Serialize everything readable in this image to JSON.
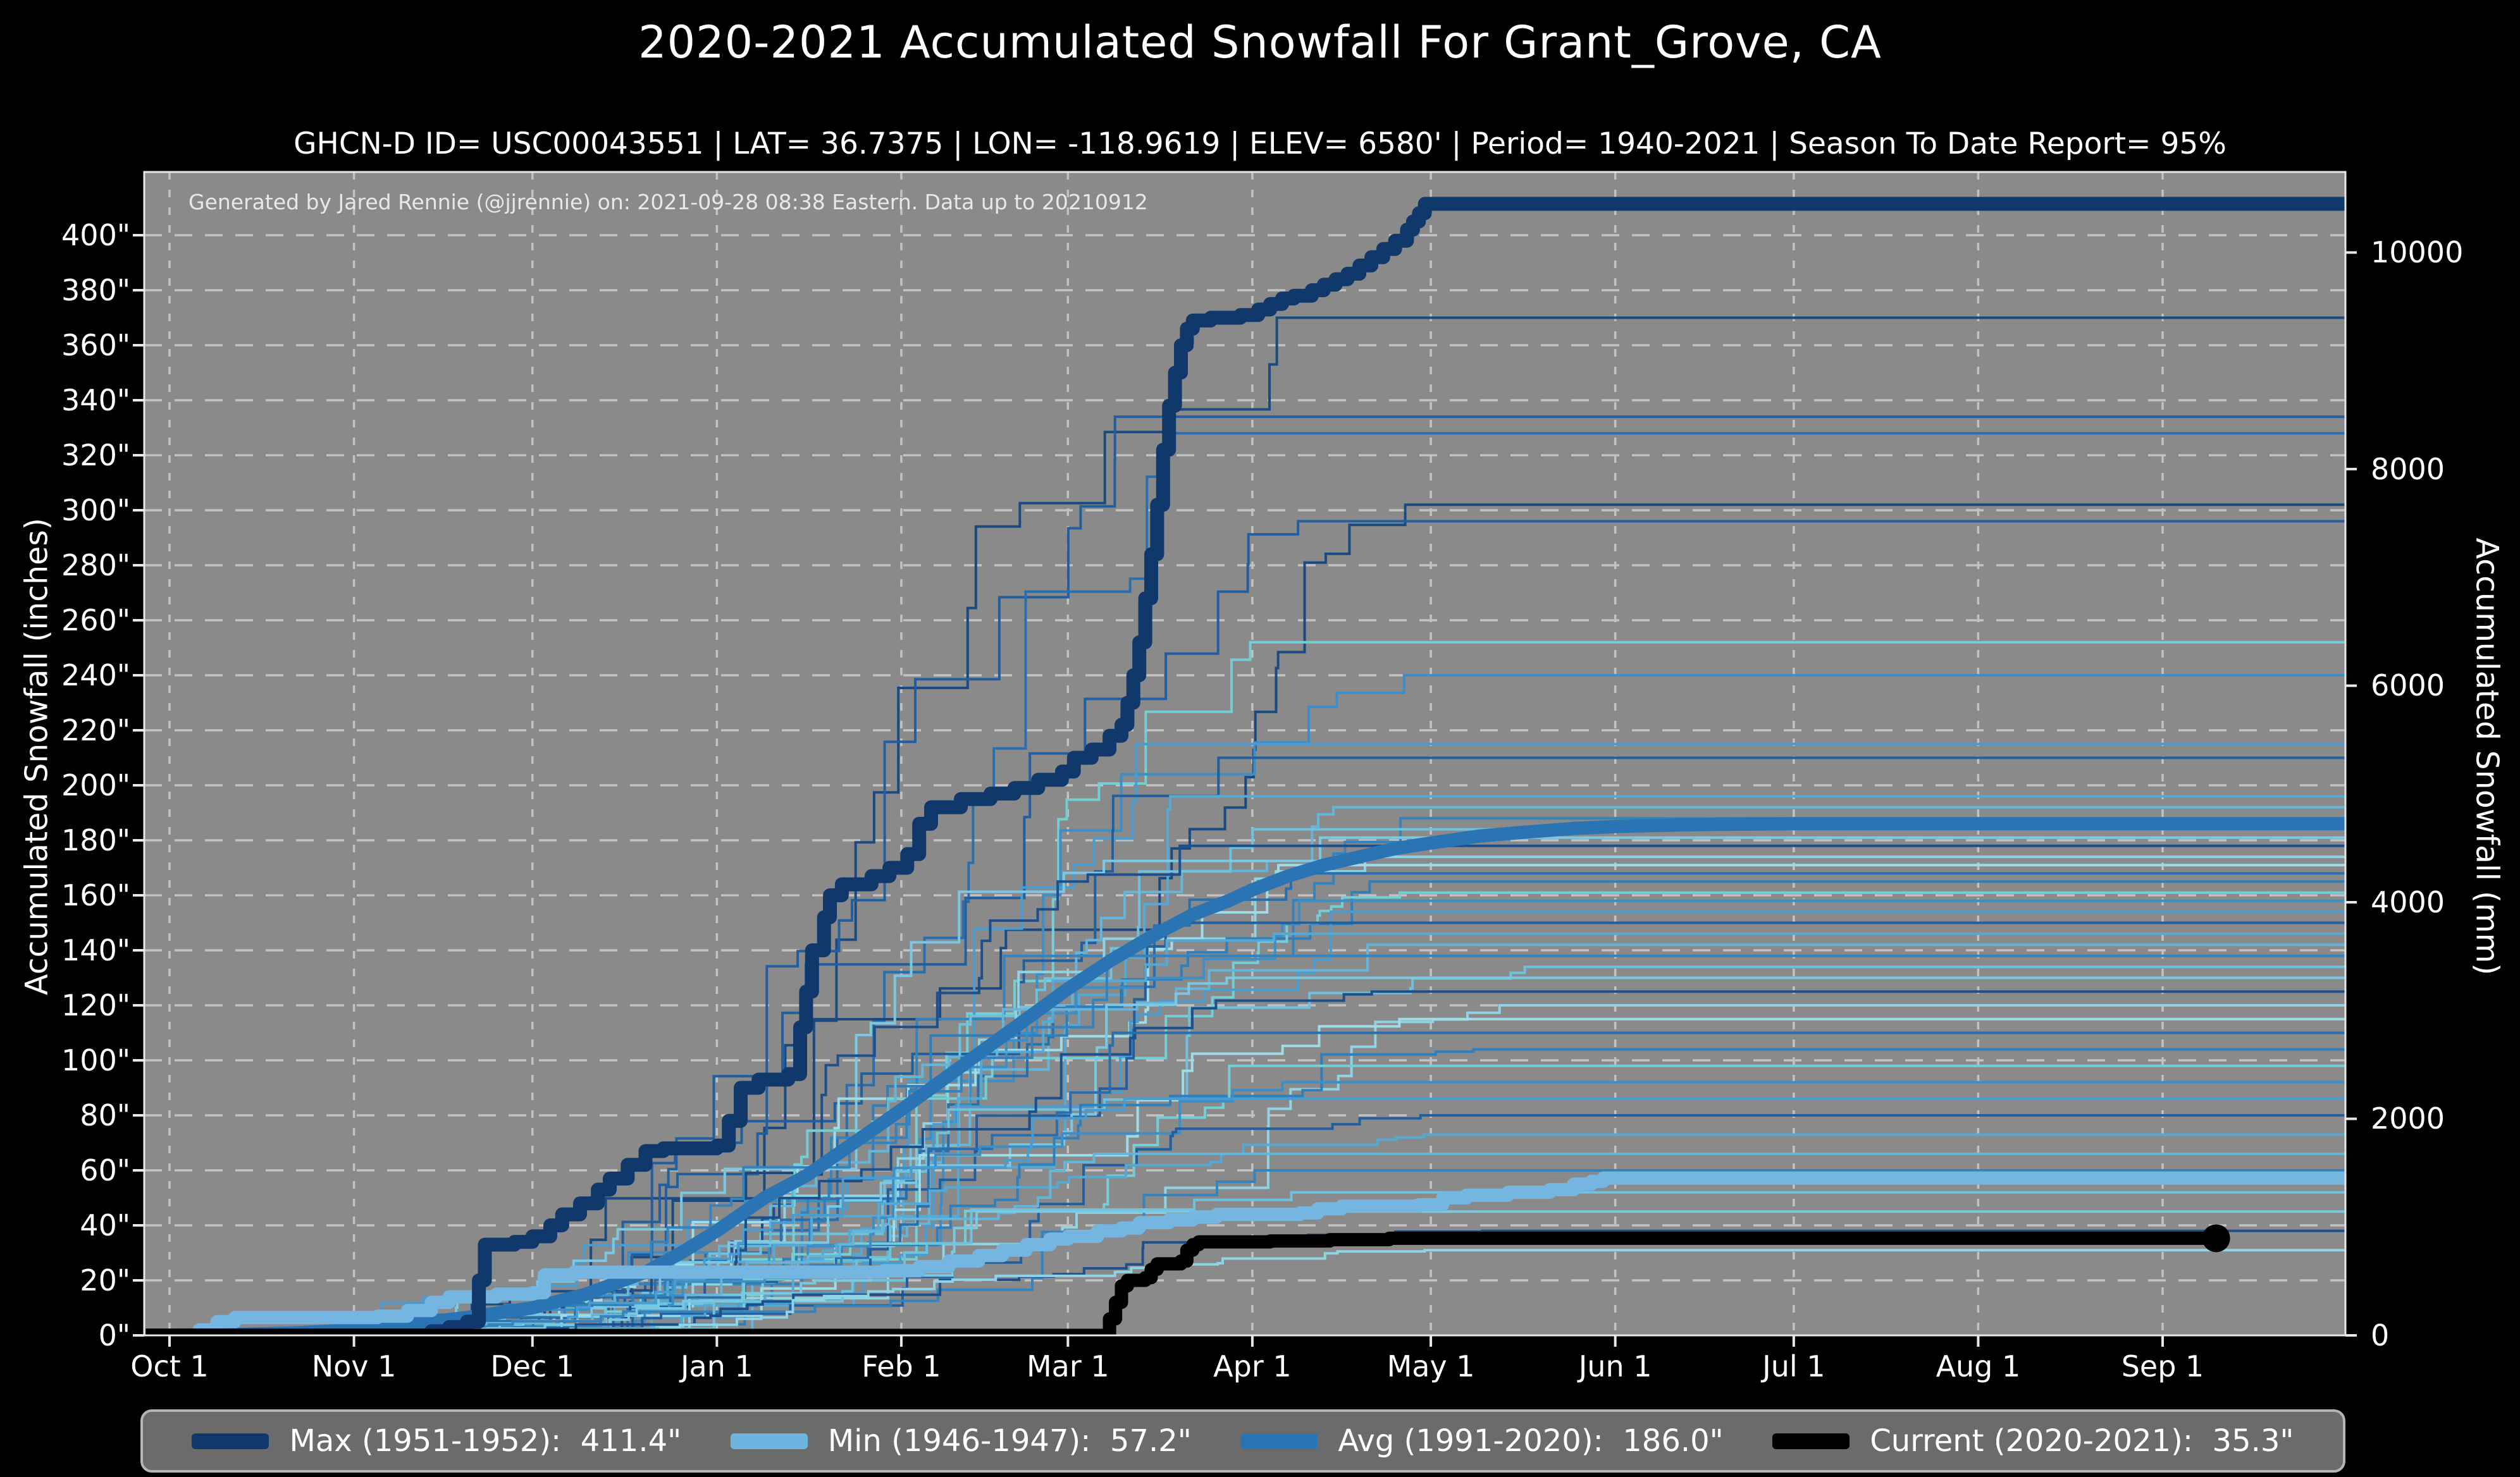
{
  "title": "2020-2021 Accumulated Snowfall For Grant_Grove, CA",
  "subtitle": "GHCN-D ID= USC00043551 | LAT= 36.7375 | LON= -118.9619 | ELEV= 6580' | Period= 1940-2021 | Season To Date Report= 95%",
  "attribution": "Generated by Jared Rennie (@jjrennie) on: 2021-09-28 08:38 Eastern. Data up to 20210912",
  "axes": {
    "left_label": "Accumulated Snowfall (inches)",
    "right_label": "Accumulated Snowfall (mm)",
    "x_ticks": [
      {
        "day": 0,
        "label": "Oct 1"
      },
      {
        "day": 31,
        "label": "Nov 1"
      },
      {
        "day": 61,
        "label": "Dec 1"
      },
      {
        "day": 92,
        "label": "Jan 1"
      },
      {
        "day": 123,
        "label": "Feb 1"
      },
      {
        "day": 151,
        "label": "Mar 1"
      },
      {
        "day": 182,
        "label": "Apr 1"
      },
      {
        "day": 212,
        "label": "May 1"
      },
      {
        "day": 243,
        "label": "Jun 1"
      },
      {
        "day": 273,
        "label": "Jul 1"
      },
      {
        "day": 304,
        "label": "Aug 1"
      },
      {
        "day": 335,
        "label": "Sep 1"
      }
    ],
    "y_ticks_inches": [
      {
        "v": 0,
        "label": "0\""
      },
      {
        "v": 20,
        "label": "20\""
      },
      {
        "v": 40,
        "label": "40\""
      },
      {
        "v": 60,
        "label": "60\""
      },
      {
        "v": 80,
        "label": "80\""
      },
      {
        "v": 100,
        "label": "100\""
      },
      {
        "v": 120,
        "label": "120\""
      },
      {
        "v": 140,
        "label": "140\""
      },
      {
        "v": 160,
        "label": "160\""
      },
      {
        "v": 180,
        "label": "180\""
      },
      {
        "v": 200,
        "label": "200\""
      },
      {
        "v": 220,
        "label": "220\""
      },
      {
        "v": 240,
        "label": "240\""
      },
      {
        "v": 260,
        "label": "260\""
      },
      {
        "v": 280,
        "label": "280\""
      },
      {
        "v": 300,
        "label": "300\""
      },
      {
        "v": 320,
        "label": "320\""
      },
      {
        "v": 340,
        "label": "340\""
      },
      {
        "v": 360,
        "label": "360\""
      },
      {
        "v": 380,
        "label": "380\""
      },
      {
        "v": 400,
        "label": "400\""
      }
    ],
    "y_ticks_mm": [
      {
        "mm": 0,
        "label": "0"
      },
      {
        "mm": 2000,
        "label": "2000"
      },
      {
        "mm": 4000,
        "label": "4000"
      },
      {
        "mm": 6000,
        "label": "6000"
      },
      {
        "mm": 8000,
        "label": "8000"
      },
      {
        "mm": 10000,
        "label": "10000"
      }
    ]
  },
  "legend": [
    {
      "label": "Max (1951-1952):  411.4\"",
      "color": "#10386b"
    },
    {
      "label": "Min (1946-1947):  57.2\"",
      "color": "#6cb3de"
    },
    {
      "label": "Avg (1991-2020):  186.0\"",
      "color": "#2a74b4"
    },
    {
      "label": "Current (2020-2021):  35.3\"",
      "color": "#000000"
    }
  ],
  "colors": {
    "figure_bg": "#000000",
    "plot_bg": "#8a8a8a",
    "grid": "#c6c6c6",
    "spine": "#e8e8e8",
    "max_line": "#10386b",
    "min_line": "#74b6e0",
    "avg_line": "#2a74b4",
    "current_line": "#000000"
  },
  "chart_data": {
    "type": "line",
    "title": "2020-2021 Accumulated Snowfall For Grant_Grove, CA",
    "xlabel": "",
    "ylabel_left": "Accumulated Snowfall (inches)",
    "ylabel_right": "Accumulated Snowfall (mm)",
    "x_unit": "days since Oct 1",
    "xlim": [
      -4,
      366
    ],
    "ylim_inches": [
      0,
      423
    ],
    "grid": true,
    "legend_position": "bottom",
    "series": [
      {
        "name": "Max (1951-1952)",
        "final_inches": 411.4,
        "style": "step",
        "color": "#10386b",
        "width": 22,
        "points": [
          [
            -4,
            0
          ],
          [
            44,
            1.5
          ],
          [
            47,
            3
          ],
          [
            50,
            5
          ],
          [
            52,
            20
          ],
          [
            53,
            33
          ],
          [
            58,
            34
          ],
          [
            61,
            36
          ],
          [
            64,
            40
          ],
          [
            66,
            44
          ],
          [
            69,
            48
          ],
          [
            72,
            53
          ],
          [
            74,
            57
          ],
          [
            77,
            62
          ],
          [
            80,
            67
          ],
          [
            83,
            68
          ],
          [
            92,
            69
          ],
          [
            94,
            78
          ],
          [
            96,
            90
          ],
          [
            99,
            93
          ],
          [
            104,
            95
          ],
          [
            106,
            112
          ],
          [
            107,
            125
          ],
          [
            108,
            140
          ],
          [
            110,
            152
          ],
          [
            111,
            160
          ],
          [
            113,
            164
          ],
          [
            118,
            167
          ],
          [
            121,
            170
          ],
          [
            124,
            175
          ],
          [
            126,
            186
          ],
          [
            128,
            192
          ],
          [
            133,
            195
          ],
          [
            138,
            197
          ],
          [
            142,
            199
          ],
          [
            146,
            202
          ],
          [
            150,
            205
          ],
          [
            152,
            210
          ],
          [
            155,
            213
          ],
          [
            158,
            218
          ],
          [
            160,
            222
          ],
          [
            161,
            230
          ],
          [
            162,
            240
          ],
          [
            163,
            252
          ],
          [
            164,
            268
          ],
          [
            165,
            284
          ],
          [
            166,
            302
          ],
          [
            167,
            322
          ],
          [
            168,
            338
          ],
          [
            169,
            350
          ],
          [
            170,
            360
          ],
          [
            171,
            366
          ],
          [
            172,
            369
          ],
          [
            175,
            370
          ],
          [
            180,
            371
          ],
          [
            183,
            373
          ],
          [
            185,
            375
          ],
          [
            187,
            377
          ],
          [
            189,
            378
          ],
          [
            192,
            380
          ],
          [
            194,
            382
          ],
          [
            196,
            384
          ],
          [
            198,
            386
          ],
          [
            200,
            389
          ],
          [
            202,
            392
          ],
          [
            204,
            395
          ],
          [
            206,
            398
          ],
          [
            208,
            402
          ],
          [
            209,
            405
          ],
          [
            210,
            408
          ],
          [
            211,
            411.4
          ],
          [
            366,
            411.4
          ]
        ]
      },
      {
        "name": "Avg (1991-2020)",
        "final_inches": 186.0,
        "style": "linear",
        "color": "#2a74b4",
        "width": 21,
        "points": [
          [
            -4,
            0
          ],
          [
            10,
            0.3
          ],
          [
            20,
            0.8
          ],
          [
            31,
            2
          ],
          [
            40,
            4
          ],
          [
            50,
            6.5
          ],
          [
            61,
            10
          ],
          [
            70,
            15
          ],
          [
            80,
            23
          ],
          [
            86,
            30
          ],
          [
            92,
            38
          ],
          [
            100,
            50
          ],
          [
            107,
            58
          ],
          [
            115,
            70
          ],
          [
            123,
            82
          ],
          [
            130,
            93
          ],
          [
            137,
            104
          ],
          [
            144,
            115
          ],
          [
            151,
            126
          ],
          [
            158,
            136
          ],
          [
            165,
            145
          ],
          [
            172,
            153
          ],
          [
            178,
            158
          ],
          [
            182,
            162
          ],
          [
            188,
            167
          ],
          [
            194,
            171
          ],
          [
            200,
            174
          ],
          [
            206,
            177
          ],
          [
            212,
            179
          ],
          [
            220,
            181.5
          ],
          [
            228,
            183
          ],
          [
            236,
            184.3
          ],
          [
            243,
            185
          ],
          [
            252,
            185.5
          ],
          [
            260,
            185.8
          ],
          [
            273,
            186
          ],
          [
            366,
            186
          ]
        ]
      },
      {
        "name": "Min (1946-1947)",
        "final_inches": 57.2,
        "style": "step",
        "color": "#74b6e0",
        "width": 21,
        "points": [
          [
            -4,
            0
          ],
          [
            5,
            2
          ],
          [
            8,
            5
          ],
          [
            11,
            6.5
          ],
          [
            35,
            7
          ],
          [
            40,
            9
          ],
          [
            44,
            12
          ],
          [
            47,
            14
          ],
          [
            55,
            15
          ],
          [
            61,
            15.5
          ],
          [
            63,
            22
          ],
          [
            68,
            23
          ],
          [
            120,
            23.5
          ],
          [
            126,
            25
          ],
          [
            131,
            27
          ],
          [
            136,
            29
          ],
          [
            140,
            31
          ],
          [
            144,
            33
          ],
          [
            148,
            35
          ],
          [
            151,
            36
          ],
          [
            156,
            38
          ],
          [
            160,
            39
          ],
          [
            163,
            41
          ],
          [
            168,
            42
          ],
          [
            172,
            43
          ],
          [
            176,
            44
          ],
          [
            190,
            44.5
          ],
          [
            193,
            46
          ],
          [
            197,
            47
          ],
          [
            210,
            47.5
          ],
          [
            214,
            50
          ],
          [
            218,
            51
          ],
          [
            225,
            52
          ],
          [
            232,
            53
          ],
          [
            236,
            55
          ],
          [
            239,
            56
          ],
          [
            241,
            57.2
          ],
          [
            366,
            57.2
          ]
        ]
      },
      {
        "name": "Current (2020-2021)",
        "final_inches": 35.3,
        "style": "step",
        "color": "#000000",
        "width": 21,
        "end_day": 344,
        "end_dot": true,
        "dot_radius": 22,
        "points": [
          [
            -4,
            0
          ],
          [
            157,
            0
          ],
          [
            158,
            6
          ],
          [
            159,
            12
          ],
          [
            160,
            18
          ],
          [
            161,
            20
          ],
          [
            164,
            21
          ],
          [
            165,
            24
          ],
          [
            166,
            26
          ],
          [
            170,
            27
          ],
          [
            171,
            31
          ],
          [
            172,
            33
          ],
          [
            173,
            34
          ],
          [
            185,
            34.3
          ],
          [
            195,
            34.8
          ],
          [
            205,
            35.3
          ],
          [
            344,
            35.3
          ]
        ]
      }
    ],
    "background_years": {
      "description": "thin historical season accumulation curves 1940-2021, right-edge totals in inches",
      "stroke_width": 4,
      "finals_inches": [
        370,
        334,
        328,
        302,
        296,
        252,
        240,
        215,
        210,
        196,
        192,
        188,
        184,
        181,
        178,
        174,
        171,
        168,
        165,
        161,
        158,
        154,
        150,
        146,
        142,
        138,
        134,
        130,
        125,
        120,
        115,
        110,
        104,
        98,
        92,
        86,
        80,
        73,
        66,
        60,
        52,
        45,
        38,
        31
      ],
      "palette": [
        "#1d4f8c",
        "#2a6fad",
        "#3c8ec7",
        "#55aad5",
        "#6ec2dd",
        "#8fd4e4",
        "#2f7fba",
        "#4a9bd0",
        "#63b5da",
        "#7ac8e2",
        "#a0dce8",
        "#74cfd4",
        "#215f9e",
        "#3583bd"
      ],
      "dark_palette": [
        "#1b4a80",
        "#215f9e",
        "#2a6fad"
      ]
    }
  }
}
